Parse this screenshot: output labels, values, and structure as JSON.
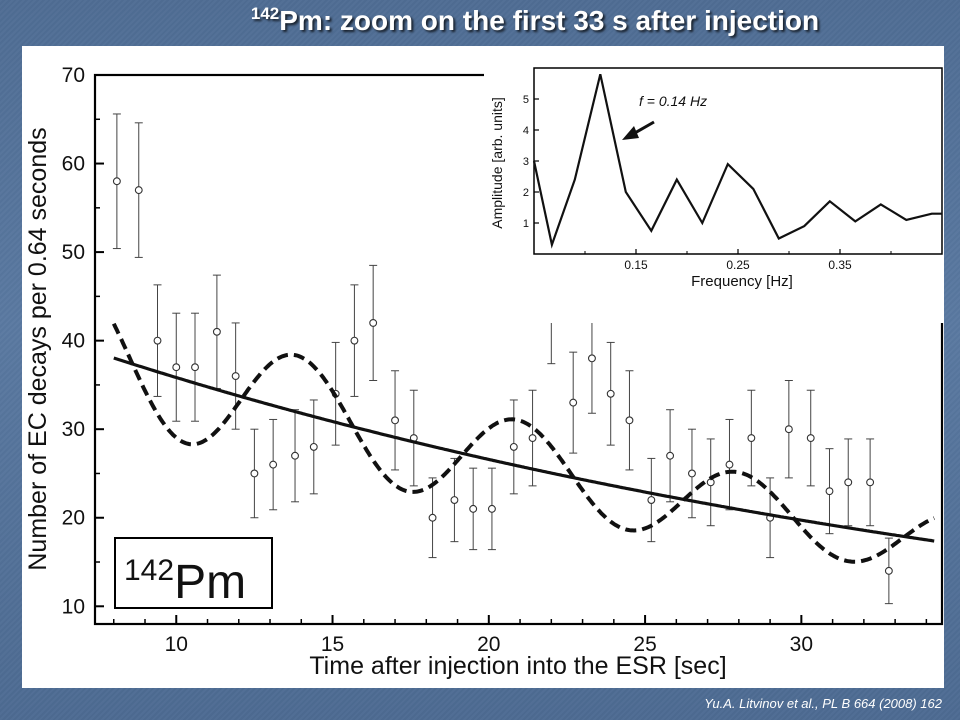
{
  "slide": {
    "title_sup": "142",
    "title_text": "Pm: zoom on the first 33 s after injection",
    "citation": "Yu.A. Litvinov et al., PL B 664 (2008) 162",
    "background_color": "#55739b"
  },
  "chart_data": [
    {
      "type": "scatter",
      "xlabel": "Time after injection into the ESR [sec]",
      "ylabel": "Number of EC decays per 0.64 seconds",
      "xlim": [
        7.4,
        34.5
      ],
      "ylim": [
        8,
        70
      ],
      "x_ticks": [
        10,
        15,
        20,
        25,
        30
      ],
      "y_ticks": [
        10,
        20,
        30,
        40,
        50,
        60,
        70
      ],
      "grid": false,
      "label_box": {
        "sup": "142",
        "text": "Pm"
      },
      "series": [
        {
          "style": "open circles with error bars",
          "points": [
            {
              "x": 8.1,
              "y": 58,
              "err": 7.6
            },
            {
              "x": 8.8,
              "y": 57,
              "err": 7.6
            },
            {
              "x": 9.4,
              "y": 40,
              "err": 6.3
            },
            {
              "x": 10.0,
              "y": 37,
              "err": 6.1
            },
            {
              "x": 10.6,
              "y": 37,
              "err": 6.1
            },
            {
              "x": 11.3,
              "y": 41,
              "err": 6.4
            },
            {
              "x": 11.9,
              "y": 36,
              "err": 6.0
            },
            {
              "x": 12.5,
              "y": 25,
              "err": 5.0
            },
            {
              "x": 13.1,
              "y": 26,
              "err": 5.1
            },
            {
              "x": 13.8,
              "y": 27,
              "err": 5.2
            },
            {
              "x": 14.4,
              "y": 28,
              "err": 5.3
            },
            {
              "x": 15.1,
              "y": 34,
              "err": 5.8
            },
            {
              "x": 15.7,
              "y": 40,
              "err": 6.3
            },
            {
              "x": 16.3,
              "y": 42,
              "err": 6.5
            },
            {
              "x": 17.0,
              "y": 31,
              "err": 5.6
            },
            {
              "x": 17.6,
              "y": 29,
              "err": 5.4
            },
            {
              "x": 18.2,
              "y": 20,
              "err": 4.5
            },
            {
              "x": 18.9,
              "y": 22,
              "err": 4.7
            },
            {
              "x": 19.5,
              "y": 21,
              "err": 4.6
            },
            {
              "x": 20.1,
              "y": 21,
              "err": 4.6
            },
            {
              "x": 20.8,
              "y": 28,
              "err": 5.3
            },
            {
              "x": 21.4,
              "y": 29,
              "err": 5.4
            },
            {
              "x": 22.0,
              "y": 44,
              "err": 6.6
            },
            {
              "x": 22.7,
              "y": 33,
              "err": 5.7
            },
            {
              "x": 23.3,
              "y": 38,
              "err": 6.2
            },
            {
              "x": 23.9,
              "y": 34,
              "err": 5.8
            },
            {
              "x": 24.5,
              "y": 31,
              "err": 5.6
            },
            {
              "x": 25.2,
              "y": 22,
              "err": 4.7
            },
            {
              "x": 25.8,
              "y": 27,
              "err": 5.2
            },
            {
              "x": 26.5,
              "y": 25,
              "err": 5.0
            },
            {
              "x": 27.1,
              "y": 24,
              "err": 4.9
            },
            {
              "x": 27.7,
              "y": 26,
              "err": 5.1
            },
            {
              "x": 28.4,
              "y": 29,
              "err": 5.4
            },
            {
              "x": 29.0,
              "y": 20,
              "err": 4.5
            },
            {
              "x": 29.6,
              "y": 30,
              "err": 5.5
            },
            {
              "x": 30.3,
              "y": 29,
              "err": 5.4
            },
            {
              "x": 30.9,
              "y": 23,
              "err": 4.8
            },
            {
              "x": 31.5,
              "y": 24,
              "err": 4.9
            },
            {
              "x": 32.2,
              "y": 24,
              "err": 4.9
            },
            {
              "x": 32.8,
              "y": 14,
              "err": 3.7
            }
          ]
        },
        {
          "style": "solid line (exponential fit)",
          "fit": {
            "model": "A*exp(-x/tau)",
            "A": 48.3,
            "tau": 33.5
          }
        },
        {
          "style": "dashed line (fit with modulation)",
          "fit": {
            "model": "A*exp(-x/tau)*(1+a*cos(w*x+phi))",
            "A": 48.3,
            "tau": 33.5,
            "a": 0.2,
            "w": 0.89,
            "phi": 0.2
          }
        }
      ]
    },
    {
      "type": "line",
      "xlabel": "Frequency [Hz]",
      "ylabel": "Amplitude [arb. units]",
      "xlim": [
        0.05,
        0.45
      ],
      "ylim": [
        0,
        6
      ],
      "x_ticks": [
        0.15,
        0.25,
        0.35
      ],
      "y_ticks": [
        1,
        2,
        3,
        4,
        5
      ],
      "annotation": "f = 0.14 Hz",
      "x": [
        0.05,
        0.0675,
        0.09,
        0.115,
        0.14,
        0.165,
        0.19,
        0.215,
        0.24,
        0.265,
        0.29,
        0.315,
        0.34,
        0.365,
        0.39,
        0.415,
        0.44,
        0.45
      ],
      "values": [
        3.0,
        0.3,
        2.4,
        5.8,
        2.0,
        0.75,
        2.4,
        1.0,
        2.9,
        2.1,
        0.5,
        0.9,
        1.7,
        1.05,
        1.6,
        1.1,
        1.3,
        1.3
      ]
    }
  ]
}
